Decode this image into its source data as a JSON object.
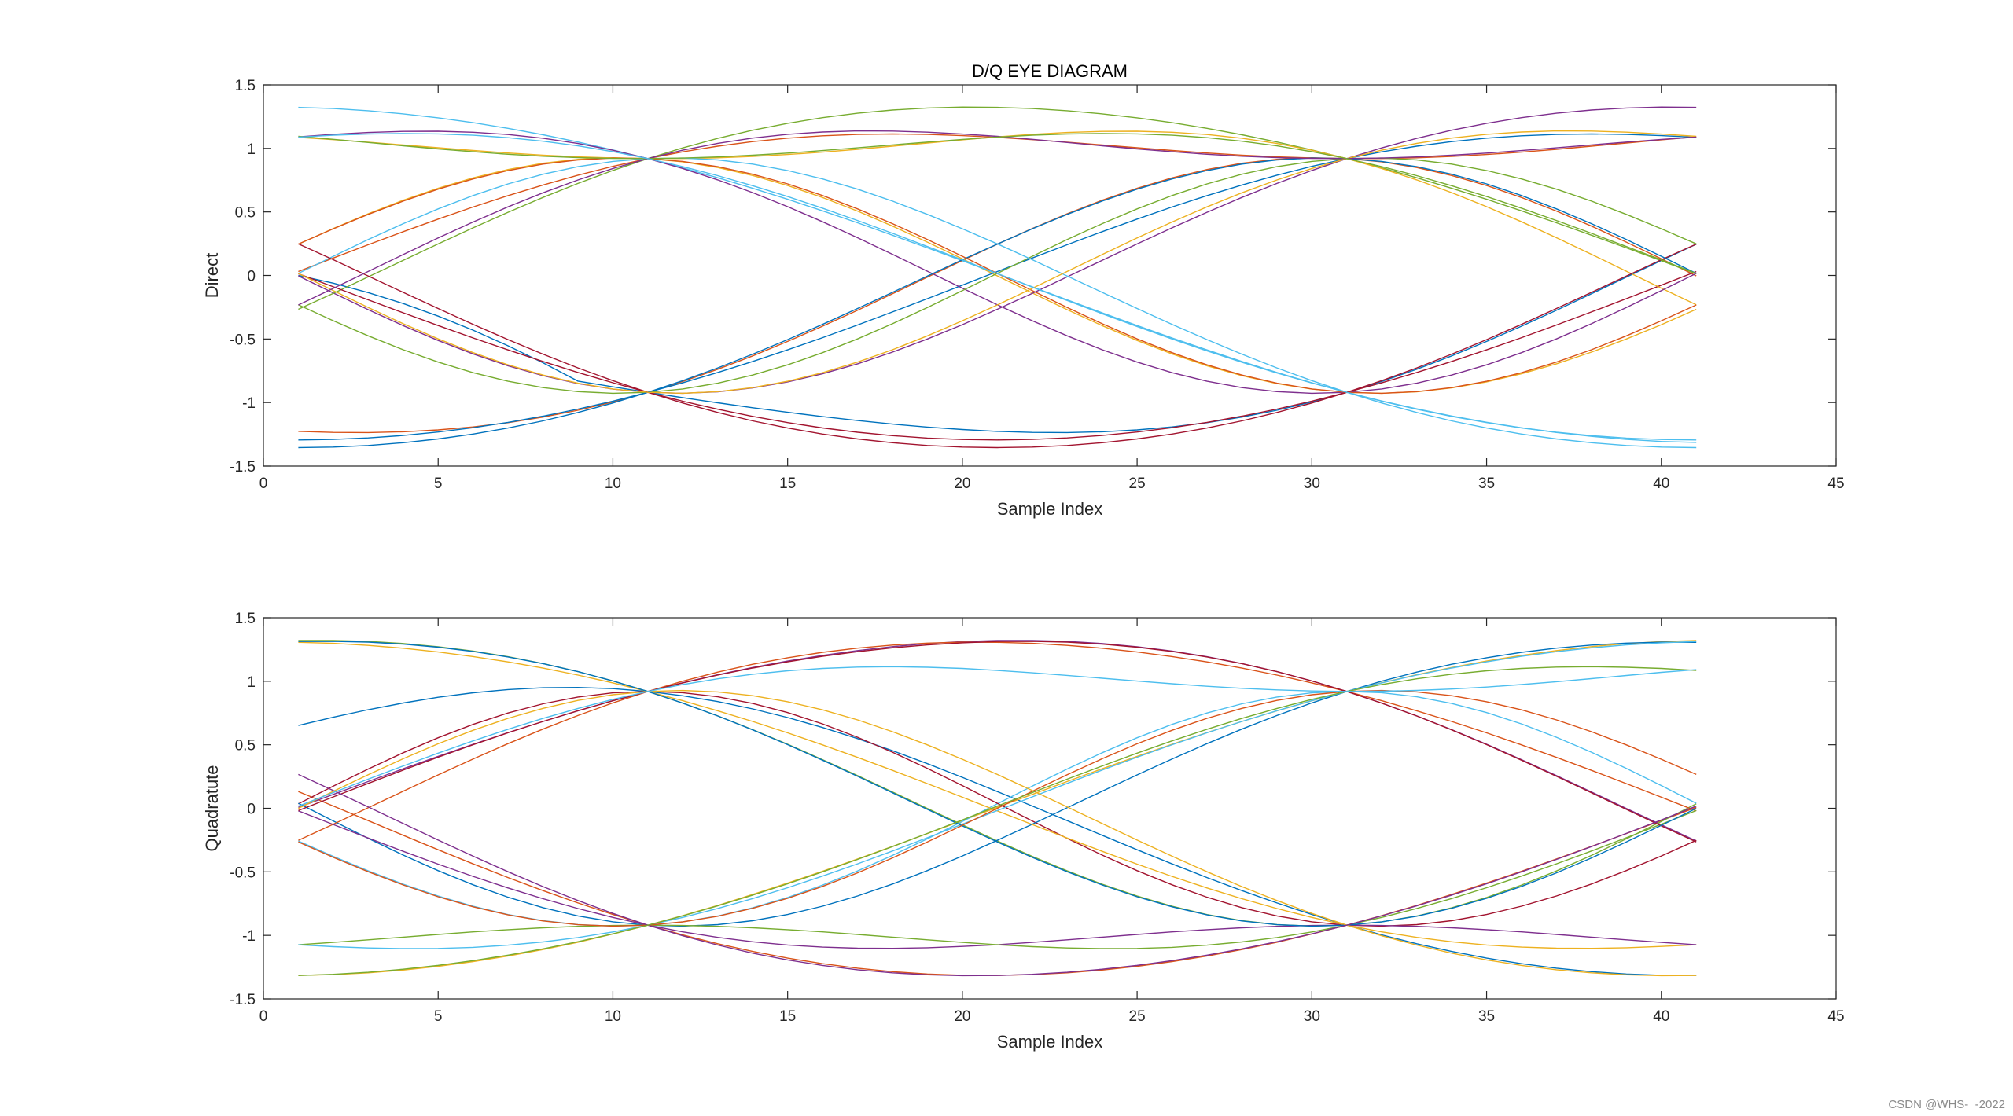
{
  "watermark": "CSDN @WHS-_-2022",
  "colors": [
    "#0072BD",
    "#D95319",
    "#EDB120",
    "#7E2F8E",
    "#77AC30",
    "#4DBEEE",
    "#A2142F"
  ],
  "chart_data": [
    {
      "type": "line",
      "title": "D/Q EYE DIAGRAM",
      "xlabel": "Sample Index",
      "ylabel": "Direct",
      "xlim": [
        0,
        45
      ],
      "ylim": [
        -1.5,
        1.5
      ],
      "xticks": [
        "0",
        "5",
        "10",
        "15",
        "20",
        "25",
        "30",
        "35",
        "40",
        "45"
      ],
      "yticks": [
        "1.5",
        "1",
        "0.5",
        "0",
        "-0.5",
        "-1",
        "-1.5"
      ],
      "samples_per_symbol": 20,
      "levels": [
        -1,
        1
      ],
      "symbol_sequence": [
        0,
        0,
        1,
        0,
        1,
        1,
        0,
        0,
        1,
        1,
        1,
        0,
        1,
        0,
        0,
        1,
        0,
        1,
        1,
        1,
        0,
        0,
        1,
        0,
        1,
        1,
        0,
        1,
        0,
        0,
        1,
        1,
        0,
        1,
        0,
        1,
        0,
        0,
        1,
        1,
        1,
        0,
        0,
        1,
        1,
        0
      ],
      "traces": 20,
      "trace_length": 41,
      "grid": false
    },
    {
      "type": "line",
      "title": "",
      "xlabel": "Sample Index",
      "ylabel": "Quadratute",
      "xlim": [
        0,
        45
      ],
      "ylim": [
        -1.5,
        1.5
      ],
      "xticks": [
        "0",
        "5",
        "10",
        "15",
        "20",
        "25",
        "30",
        "35",
        "40",
        "45"
      ],
      "yticks": [
        "1.5",
        "1",
        "0.5",
        "0",
        "-0.5",
        "-1",
        "-1.5"
      ],
      "samples_per_symbol": 20,
      "levels": [
        -1,
        1
      ],
      "symbol_sequence": [
        1,
        0,
        0,
        1,
        1,
        0,
        1,
        0,
        1,
        1,
        0,
        0,
        0,
        1,
        1,
        0,
        1,
        0,
        0,
        1,
        1,
        1,
        0,
        1,
        0,
        1,
        0,
        0,
        1,
        1,
        0,
        1,
        1,
        0,
        0,
        1,
        0,
        1,
        0,
        1,
        1,
        0,
        1,
        0,
        0,
        1
      ],
      "traces": 20,
      "trace_length": 41,
      "grid": false
    }
  ]
}
